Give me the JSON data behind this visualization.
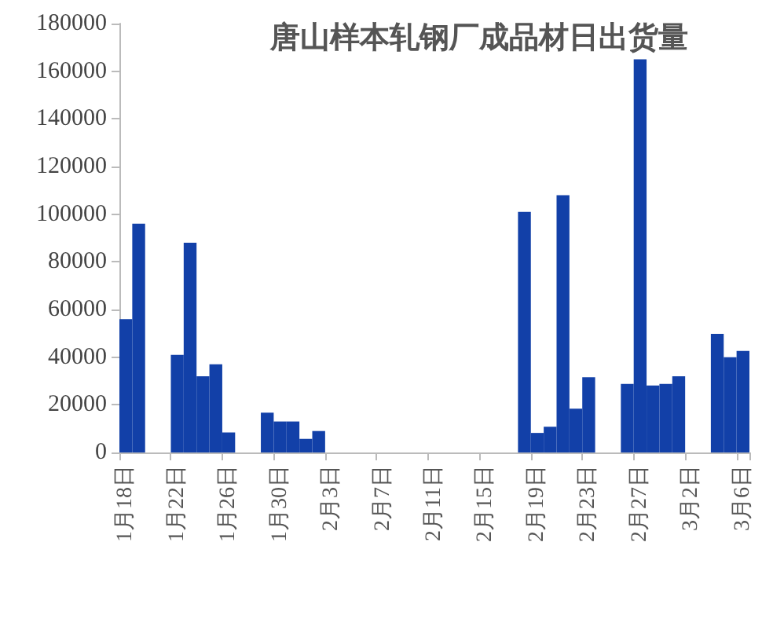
{
  "chart_data": {
    "type": "bar",
    "title": "唐山样本轧钢厂成品材日出货量",
    "categories": [
      "1月18日",
      null,
      null,
      null,
      "1月22日",
      null,
      null,
      null,
      "1月26日",
      null,
      null,
      null,
      "1月30日",
      null,
      null,
      null,
      "2月3日",
      null,
      null,
      null,
      "2月7日",
      null,
      null,
      null,
      "2月11日",
      null,
      null,
      null,
      "2月15日",
      null,
      null,
      null,
      "2月19日",
      null,
      null,
      null,
      "2月23日",
      null,
      null,
      null,
      "2月27日",
      null,
      null,
      null,
      "3月2日",
      null,
      null,
      null,
      "3月6日"
    ],
    "values": [
      56000,
      96000,
      null,
      null,
      41000,
      88000,
      32000,
      37000,
      8400,
      null,
      null,
      16700,
      13000,
      13000,
      5700,
      9000,
      null,
      null,
      null,
      null,
      null,
      null,
      null,
      null,
      null,
      null,
      null,
      null,
      null,
      null,
      null,
      101000,
      8200,
      10800,
      108000,
      18400,
      31600,
      null,
      null,
      28800,
      165000,
      28100,
      28800,
      32000,
      null,
      null,
      49800,
      40000,
      42600
    ],
    "color": "#1240a8",
    "ylim": [
      0,
      180000
    ],
    "yticks": [
      0,
      20000,
      40000,
      60000,
      80000,
      100000,
      120000,
      140000,
      160000,
      180000
    ],
    "grid": false
  }
}
